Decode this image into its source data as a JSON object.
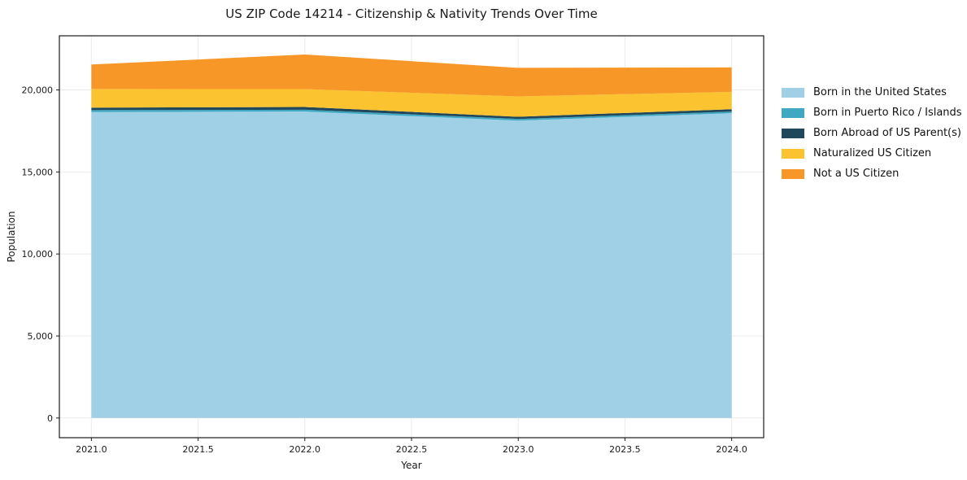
{
  "title": "US ZIP Code 14214 - Citizenship & Nativity Trends Over Time",
  "axes": {
    "xlabel": "Year",
    "ylabel": "Population",
    "x_tick_labels": [
      "2021.0",
      "2021.5",
      "2022.0",
      "2022.5",
      "2023.0",
      "2023.5",
      "2024.0"
    ],
    "y_tick_labels": [
      "0",
      "5,000",
      "10,000",
      "15,000",
      "20,000"
    ]
  },
  "chart_data": {
    "type": "area",
    "stacked": true,
    "title": "US ZIP Code 14214 - Citizenship & Nativity Trends Over Time",
    "xlabel": "Year",
    "ylabel": "Population",
    "x": [
      2021,
      2022,
      2023,
      2024
    ],
    "series": [
      {
        "name": "Born in the United States",
        "color": "#a0d0e6",
        "values": [
          18650,
          18680,
          18130,
          18580
        ]
      },
      {
        "name": "Born in Puerto Rico / Islands",
        "color": "#3fa9c4",
        "values": [
          120,
          115,
          100,
          100
        ]
      },
      {
        "name": "Born Abroad of US Parent(s)",
        "color": "#20475a",
        "values": [
          150,
          165,
          135,
          145
        ]
      },
      {
        "name": "Naturalized US Citizen",
        "color": "#fcc330",
        "values": [
          1140,
          1090,
          1240,
          1060
        ]
      },
      {
        "name": "Not a US Citizen",
        "color": "#f79727",
        "values": [
          1490,
          2110,
          1740,
          1490
        ]
      }
    ],
    "totals": [
      21550,
      22160,
      21345,
      21375
    ],
    "xlim": [
      2020.85,
      2024.15
    ],
    "ylim": [
      -1200,
      23300
    ],
    "x_ticks": [
      2021.0,
      2021.5,
      2022.0,
      2022.5,
      2023.0,
      2023.5,
      2024.0
    ],
    "y_ticks": [
      0,
      5000,
      10000,
      15000,
      20000
    ],
    "grid": true,
    "legend_position": "right-outside"
  },
  "colors": {
    "background": "#ffffff",
    "grid": "#ebebeb",
    "spine": "#1a1a1a",
    "tick_text": "#1a1a1a"
  }
}
